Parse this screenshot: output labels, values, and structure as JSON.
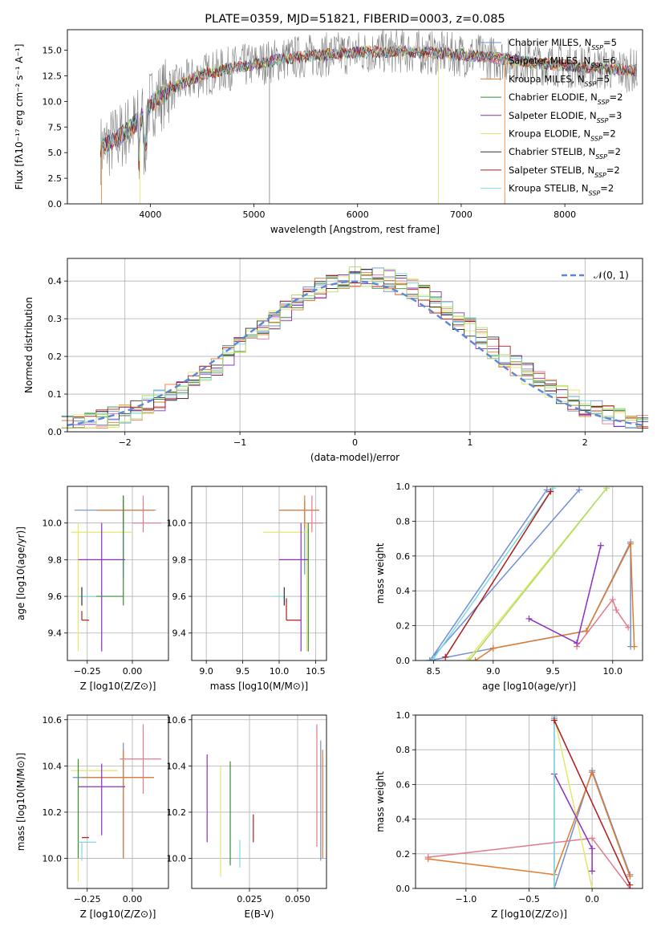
{
  "chart_data": [
    {
      "type": "line",
      "title": "PLATE=0359, MJD=51821, FIBERID=0003, z=0.085",
      "xlabel": "wavelength [Angstrom, rest frame]",
      "ylabel": "Flux [fλ10⁻¹⁷ erg cm⁻² s⁻¹ A⁻¹]",
      "xlim": [
        3200,
        8750
      ],
      "ylim": [
        0,
        17
      ],
      "xticks": [
        4000,
        5000,
        6000,
        7000,
        8000
      ],
      "yticks": [
        0.0,
        2.5,
        5.0,
        7.5,
        10.0,
        12.5,
        15.0
      ],
      "legend_position": "right",
      "legend": [
        {
          "label": "Chabrier MILES, N_SSP=5",
          "color": "#6f8fd8"
        },
        {
          "label": "Salpeter MILES, N_SSP=6",
          "color": "#e07a8d"
        },
        {
          "label": "Kroupa MILES, N_SSP=5",
          "color": "#e07b2a"
        },
        {
          "label": "Chabrier ELODIE, N_SSP=2",
          "color": "#3a8a3a"
        },
        {
          "label": "Salpeter ELODIE, N_SSP=3",
          "color": "#8c2fbf"
        },
        {
          "label": "Kroupa ELODIE, N_SSP=2",
          "color": "#e6e66a"
        },
        {
          "label": "Chabrier STELIB, N_SSP=2",
          "color": "#333333"
        },
        {
          "label": "Salpeter STELIB, N_SSP=2",
          "color": "#b01c1c"
        },
        {
          "label": "Kroupa STELIB, N_SSP=2",
          "color": "#80d8e0"
        }
      ],
      "continuum": {
        "x": [
          3500,
          3700,
          3900,
          4000,
          4200,
          4500,
          4800,
          5000,
          5300,
          5600,
          6000,
          6400,
          6800,
          7200,
          7600,
          8000,
          8400,
          8700
        ],
        "y": [
          5.2,
          6.5,
          8.2,
          9.8,
          11.2,
          12.6,
          13.3,
          13.6,
          14.2,
          14.5,
          14.8,
          14.9,
          14.7,
          14.4,
          13.9,
          13.5,
          13.2,
          13.0
        ]
      }
    },
    {
      "type": "line",
      "xlabel": "(data-model)/error",
      "ylabel": "Normed distribution",
      "xlim": [
        -2.5,
        2.5
      ],
      "ylim": [
        0,
        0.46
      ],
      "xticks": [
        -2,
        -1,
        0,
        1,
        2
      ],
      "yticks": [
        0.0,
        0.1,
        0.2,
        0.3,
        0.4
      ],
      "grid": true,
      "legend_position": "top-right",
      "reference_curve": {
        "label": "𝒩(0, 1)",
        "color": "#5b88d6",
        "style": "dashed"
      }
    },
    {
      "type": "scatter",
      "xlabel": "Z [log10(Z/Z⊙)]",
      "ylabel": "age  [log10(age/yr)]",
      "xlim": [
        -0.36,
        0.2
      ],
      "ylim": [
        9.25,
        10.2
      ],
      "xticks": [
        -0.25,
        0.0
      ],
      "yticks": [
        9.4,
        9.6,
        9.8,
        10.0
      ],
      "grid": true,
      "series": [
        {
          "color": "#6f8fd8",
          "x": -0.05,
          "xerr": [
            0.27,
            0.18
          ],
          "y": 10.07,
          "yerr": [
            0.37,
            0.05
          ]
        },
        {
          "color": "#e07b2a",
          "x": -0.05,
          "xerr": [
            0.15,
            0.17
          ],
          "y": 10.07,
          "yerr": [
            0.1,
            0.08
          ]
        },
        {
          "color": "#e07a8d",
          "x": 0.06,
          "xerr": [
            0.06,
            0.1
          ],
          "y": 10.0,
          "yerr": [
            0.05,
            0.15
          ]
        },
        {
          "color": "#e6e66a",
          "x": -0.3,
          "xerr": [
            0.04,
            0.3
          ],
          "y": 9.95,
          "yerr": [
            0.65,
            0.05
          ]
        },
        {
          "color": "#8c2fbf",
          "x": -0.17,
          "xerr": [
            0.13,
            0.13
          ],
          "y": 9.8,
          "yerr": [
            0.5,
            0.2
          ]
        },
        {
          "color": "#3a8a3a",
          "x": -0.05,
          "xerr": [
            0.25,
            0.0
          ],
          "y": 9.6,
          "yerr": [
            0.05,
            0.55
          ]
        },
        {
          "color": "#80d8e0",
          "x": -0.28,
          "xerr": [
            0.02,
            0.08
          ],
          "y": 9.6,
          "yerr": [
            0.05,
            0.05
          ]
        },
        {
          "color": "#333333",
          "x": -0.28,
          "xerr": [
            0.0,
            0.0
          ],
          "y": 9.6,
          "yerr": [
            0.05,
            0.05
          ]
        },
        {
          "color": "#b01c1c",
          "x": -0.28,
          "xerr": [
            0.0,
            0.04
          ],
          "y": 9.47,
          "yerr": [
            0.0,
            0.05
          ]
        }
      ]
    },
    {
      "type": "scatter",
      "xlabel": "mass [log10(M/M⊙)]",
      "ylabel": "",
      "xlim": [
        8.8,
        10.65
      ],
      "ylim": [
        9.25,
        10.2
      ],
      "xticks": [
        9.0,
        9.5,
        10.0,
        10.5
      ],
      "yticks": [
        9.4,
        9.6,
        9.8,
        10.0
      ],
      "grid": true,
      "series": [
        {
          "color": "#6f8fd8",
          "x": 10.35,
          "xerr": [
            0.35,
            0.2
          ],
          "y": 10.07,
          "yerr": [
            0.35,
            0.05
          ]
        },
        {
          "color": "#e07b2a",
          "x": 10.35,
          "xerr": [
            0.35,
            0.2
          ],
          "y": 10.07,
          "yerr": [
            0.1,
            0.08
          ]
        },
        {
          "color": "#e07a8d",
          "x": 10.45,
          "xerr": [
            0.1,
            0.15
          ],
          "y": 10.0,
          "yerr": [
            0.05,
            0.15
          ]
        },
        {
          "color": "#e6e66a",
          "x": 10.38,
          "xerr": [
            0.6,
            0.0
          ],
          "y": 9.95,
          "yerr": [
            0.65,
            0.05
          ]
        },
        {
          "color": "#8c2fbf",
          "x": 10.3,
          "xerr": [
            0.3,
            0.1
          ],
          "y": 9.8,
          "yerr": [
            0.5,
            0.2
          ]
        },
        {
          "color": "#3a8a3a",
          "x": 10.4,
          "xerr": [
            0.0,
            0.0
          ],
          "y": 9.65,
          "yerr": [
            0.35,
            0.35
          ]
        },
        {
          "color": "#80d8e0",
          "x": 10.07,
          "xerr": [
            0.15,
            0.0
          ],
          "y": 9.6,
          "yerr": [
            0.05,
            0.0
          ]
        },
        {
          "color": "#333333",
          "x": 10.07,
          "xerr": [
            0.0,
            0.0
          ],
          "y": 9.6,
          "yerr": [
            0.05,
            0.05
          ]
        },
        {
          "color": "#b01c1c",
          "x": 10.1,
          "xerr": [
            0.0,
            0.2
          ],
          "y": 9.47,
          "yerr": [
            0.0,
            0.12
          ]
        }
      ]
    },
    {
      "type": "line",
      "xlabel": "age  [log10(age/yr)]",
      "ylabel": "mass weight",
      "xlim": [
        8.35,
        10.25
      ],
      "ylim": [
        0,
        1
      ],
      "xticks": [
        8.5,
        9.0,
        9.5,
        10.0
      ],
      "yticks": [
        0.0,
        0.2,
        0.4,
        0.6,
        0.8,
        1.0
      ],
      "grid": true,
      "series": [
        {
          "color": "#6f8fd8",
          "x": [
            8.47,
            9.45,
            8.47,
            9.72,
            8.47,
            9.0,
            9.78,
            10.15,
            10.15
          ],
          "y": [
            0.0,
            0.98,
            0.0,
            0.98,
            0.0,
            0.07,
            0.17,
            0.68,
            0.08
          ]
        },
        {
          "color": "#e07b2a",
          "x": [
            8.85,
            9.0,
            9.78,
            10.15,
            10.18
          ],
          "y": [
            0.0,
            0.07,
            0.17,
            0.67,
            0.08
          ]
        },
        {
          "color": "#e07a8d",
          "x": [
            9.7,
            10.0,
            10.03,
            10.13
          ],
          "y": [
            0.08,
            0.35,
            0.29,
            0.19
          ]
        },
        {
          "color": "#e6e66a",
          "x": [
            8.78,
            9.95
          ],
          "y": [
            0.0,
            0.99
          ]
        },
        {
          "color": "#8c2fbf",
          "x": [
            9.3,
            9.7,
            9.9
          ],
          "y": [
            0.24,
            0.1,
            0.66
          ]
        },
        {
          "color": "#80d8e0",
          "x": [
            8.5,
            9.5
          ],
          "y": [
            0.01,
            0.99
          ]
        },
        {
          "color": "#b01c1c",
          "x": [
            8.6,
            9.48
          ],
          "y": [
            0.02,
            0.97
          ]
        },
        {
          "color": "#aadd66",
          "x": [
            8.8,
            9.95
          ],
          "y": [
            0.0,
            0.99
          ]
        }
      ]
    },
    {
      "type": "scatter",
      "xlabel": "Z [log10(Z/Z⊙)]",
      "ylabel": "mass [log10(M/M⊙)]",
      "xlim": [
        -0.36,
        0.2
      ],
      "ylim": [
        9.87,
        10.62
      ],
      "xticks": [
        -0.25,
        0.0
      ],
      "yticks": [
        10.0,
        10.2,
        10.4,
        10.6
      ],
      "grid": true,
      "series": [
        {
          "color": "#6f8fd8",
          "x": -0.05,
          "xerr": [
            0.28,
            0.17
          ],
          "y": 10.35,
          "yerr": [
            0.35,
            0.15
          ]
        },
        {
          "color": "#e07b2a",
          "x": -0.05,
          "xerr": [
            0.23,
            0.17
          ],
          "y": 10.35,
          "yerr": [
            0.35,
            0.12
          ]
        },
        {
          "color": "#e07a8d",
          "x": 0.06,
          "xerr": [
            0.13,
            0.1
          ],
          "y": 10.43,
          "yerr": [
            0.15,
            0.15
          ]
        },
        {
          "color": "#e6e66a",
          "x": -0.3,
          "xerr": [
            0.04,
            0.22
          ],
          "y": 10.38,
          "yerr": [
            0.48,
            0.04
          ]
        },
        {
          "color": "#8c2fbf",
          "x": -0.17,
          "xerr": [
            0.13,
            0.13
          ],
          "y": 10.31,
          "yerr": [
            0.21,
            0.1
          ]
        },
        {
          "color": "#3a8a3a",
          "x": -0.3,
          "xerr": [
            0.0,
            0.0
          ],
          "y": 10.15,
          "yerr": [
            0.15,
            0.28
          ]
        },
        {
          "color": "#80d8e0",
          "x": -0.28,
          "xerr": [
            0.02,
            0.08
          ],
          "y": 10.07,
          "yerr": [
            0.08,
            0.0
          ]
        },
        {
          "color": "#b01c1c",
          "x": -0.28,
          "xerr": [
            0.0,
            0.04
          ],
          "y": 10.09,
          "yerr": [
            0.0,
            0.0
          ]
        }
      ]
    },
    {
      "type": "scatter",
      "xlabel": "E(B-V)",
      "ylabel": "",
      "xlim": [
        -0.005,
        0.065
      ],
      "ylim": [
        9.87,
        10.62
      ],
      "xticks": [
        0.025,
        0.05
      ],
      "yticks": [
        10.0,
        10.2,
        10.4,
        10.6
      ],
      "grid": true,
      "series": [
        {
          "color": "#8c2fbf",
          "x": 0.003,
          "y": 10.25,
          "yerr": [
            0.18,
            0.2
          ]
        },
        {
          "color": "#e6e66a",
          "x": 0.01,
          "y": 10.2,
          "yerr": [
            0.28,
            0.2
          ]
        },
        {
          "color": "#3a8a3a",
          "x": 0.015,
          "y": 10.2,
          "yerr": [
            0.23,
            0.22
          ]
        },
        {
          "color": "#80d8e0",
          "x": 0.02,
          "y": 10.03,
          "yerr": [
            0.07,
            0.05
          ]
        },
        {
          "color": "#b01c1c",
          "x": 0.027,
          "y": 10.12,
          "yerr": [
            0.05,
            0.07
          ]
        },
        {
          "color": "#e07a8d",
          "x": 0.06,
          "y": 10.35,
          "yerr": [
            0.3,
            0.23
          ]
        },
        {
          "color": "#6f8fd8",
          "x": 0.062,
          "y": 10.25,
          "yerr": [
            0.26,
            0.26
          ]
        },
        {
          "color": "#e07b2a",
          "x": 0.063,
          "y": 10.25,
          "yerr": [
            0.25,
            0.22
          ]
        }
      ]
    },
    {
      "type": "line",
      "xlabel": "Z [log10(Z/Z⊙)]",
      "ylabel": "mass weight",
      "xlim": [
        -1.4,
        0.4
      ],
      "ylim": [
        0,
        1
      ],
      "xticks": [
        -1.0,
        -0.5,
        0.0
      ],
      "yticks": [
        0.0,
        0.2,
        0.4,
        0.6,
        0.8,
        1.0
      ],
      "grid": true,
      "series": [
        {
          "color": "#6f8fd8",
          "x": [
            -0.3,
            -0.3,
            0.0,
            0.3
          ],
          "y": [
            0.98,
            0.0,
            0.68,
            0.08
          ]
        },
        {
          "color": "#e07b2a",
          "x": [
            -1.3,
            -0.3,
            0.0,
            0.3
          ],
          "y": [
            0.17,
            0.08,
            0.67,
            0.07
          ]
        },
        {
          "color": "#e07a8d",
          "x": [
            -1.3,
            0.0,
            0.3
          ],
          "y": [
            0.18,
            0.29,
            0.0
          ]
        },
        {
          "color": "#e6e66a",
          "x": [
            -0.3,
            0.0
          ],
          "y": [
            0.99,
            0.0
          ]
        },
        {
          "color": "#8c2fbf",
          "x": [
            -0.3,
            0.0,
            0.0
          ],
          "y": [
            0.66,
            0.23,
            0.1
          ]
        },
        {
          "color": "#80d8e0",
          "x": [
            -0.3,
            -0.3
          ],
          "y": [
            0.99,
            0.0
          ]
        },
        {
          "color": "#b01c1c",
          "x": [
            -0.3,
            0.3
          ],
          "y": [
            0.97,
            0.02
          ]
        }
      ]
    }
  ]
}
